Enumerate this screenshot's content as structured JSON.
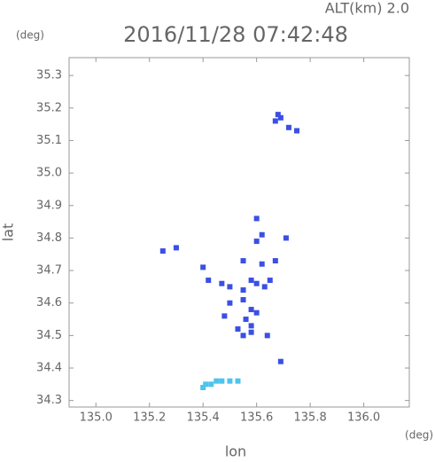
{
  "chart_data": {
    "type": "scatter",
    "title": "2016/11/28 07:42:48",
    "subtitle": "ALT(km) 2.0",
    "y_unit": "(deg)",
    "x_unit": "(deg)",
    "xlabel": "lon",
    "ylabel": "lat",
    "xlim": [
      134.9,
      136.17
    ],
    "ylim": [
      34.28,
      35.355
    ],
    "xticks": [
      {
        "value": 135,
        "label": "135.0"
      },
      135.2,
      135.4,
      135.6,
      135.8,
      {
        "value": 136,
        "label": "136.0"
      }
    ],
    "yticks": [
      34.3,
      34.4,
      34.5,
      34.6,
      34.7,
      34.8,
      34.9,
      {
        "value": 35,
        "label": "35.0"
      },
      35.1,
      35.2,
      35.3
    ],
    "series": [
      {
        "color": "#3b4fe4",
        "x": [
          135.68,
          135.69,
          135.67,
          135.75,
          135.72,
          135.25,
          135.3,
          135.6,
          135.62,
          135.71,
          135.6,
          135.4,
          135.55,
          135.67,
          135.62,
          135.42,
          135.47,
          135.5,
          135.55,
          135.58,
          135.6,
          135.63,
          135.65,
          135.5,
          135.55,
          135.58,
          135.6,
          135.56,
          135.58,
          135.53,
          135.55,
          135.58,
          135.64,
          135.48,
          135.69
        ],
        "y": [
          35.18,
          35.17,
          35.16,
          35.13,
          35.14,
          34.76,
          34.77,
          34.86,
          34.81,
          34.8,
          34.79,
          34.71,
          34.73,
          34.73,
          34.72,
          34.67,
          34.66,
          34.65,
          34.64,
          34.67,
          34.66,
          34.65,
          34.67,
          34.6,
          34.61,
          34.58,
          34.57,
          34.55,
          34.53,
          34.52,
          34.5,
          34.51,
          34.5,
          34.56,
          34.42
        ]
      },
      {
        "color": "#4cc4ec",
        "x": [
          135.4,
          135.41,
          135.43,
          135.45,
          135.47,
          135.5,
          135.53
        ],
        "y": [
          34.34,
          34.35,
          34.35,
          34.36,
          34.36,
          34.36,
          34.36
        ]
      }
    ]
  }
}
